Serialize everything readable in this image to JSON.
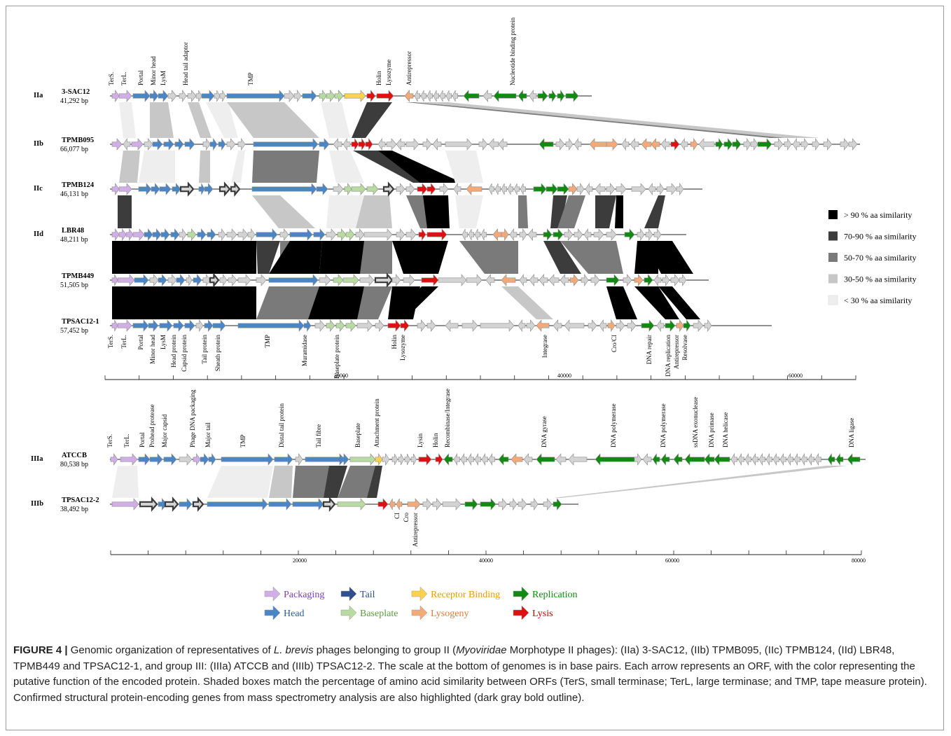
{
  "group2": {
    "genomes": [
      {
        "id": "IIa",
        "name": "3-SAC12",
        "size": "41,292 bp"
      },
      {
        "id": "IIb",
        "name": "TPMB095",
        "size": "66,077 bp"
      },
      {
        "id": "IIc",
        "name": "TPMB124",
        "size": "46,131 bp"
      },
      {
        "id": "IId",
        "name": "LBR48",
        "size": "48,211 bp"
      },
      {
        "id": "",
        "name": "TPMB449",
        "size": "51,505 bp"
      },
      {
        "id": "",
        "name": "TPSAC12-1",
        "size": "57,452 bp"
      }
    ],
    "top_labels": [
      "TerS.",
      "TerL.",
      "Portal",
      "Minor head",
      "LysM",
      "Head tail adaptor",
      "TMP",
      "Holin",
      "Lysozyme",
      "Antirepressor",
      "Nucleotide binding protein"
    ],
    "bottom_labels": [
      "TerS.",
      "TerL.",
      "Portal",
      "Minor head",
      "LysM",
      "Head protein",
      "Capsid protein",
      "Tail protein",
      "Sheath protein",
      "TMP",
      "Muramidase",
      "Baseplate protein",
      "Holin",
      "Lysozyme",
      "Integrase",
      "Cro/CI",
      "DNA repair",
      "DNA replication",
      "Antirepressor",
      "Resolvase"
    ],
    "scale_ticks": [
      "20000",
      "40000",
      "60000"
    ]
  },
  "group3": {
    "genomes": [
      {
        "id": "IIIa",
        "name": "ATCCB",
        "size": "80,538 bp"
      },
      {
        "id": "IIIb",
        "name": "TPSAC12-2",
        "size": "38,492 bp"
      }
    ],
    "top_labels": [
      "TerS.",
      "TerL.",
      "Portal",
      "Prohead protease",
      "Major capsid",
      "Phage DNA packaging",
      "Major tail",
      "TMP",
      "Distal tail protein",
      "Tail fibre",
      "Baseplate",
      "Attachment protein",
      "Lysin",
      "Holin",
      "Recombinase/Integrase",
      "DNA gyrase",
      "DNA polymerase",
      "DNA polymerase",
      "ssDNA exonuclease",
      "DNA primase",
      "DNA helicase",
      "DNA ligase"
    ],
    "bottom_labels": [
      "CI",
      "Cro",
      "Antirepressor"
    ],
    "scale_ticks": [
      "20000",
      "40000",
      "60000",
      "80000"
    ]
  },
  "similarity_legend": [
    {
      "label": "> 90 % aa similarity",
      "color": "#000000"
    },
    {
      "label": "70-90 % aa similarity",
      "color": "#3c3c3c"
    },
    {
      "label": "50-70 % aa similarity",
      "color": "#7a7a7a"
    },
    {
      "label": "30-50 % aa similarity",
      "color": "#c7c7c7"
    },
    {
      "label": "< 30 % aa similarity",
      "color": "#eeeeee"
    }
  ],
  "function_legend": [
    {
      "label": "Packaging",
      "color": "#d2aee8",
      "text_color": "#7b3fa8"
    },
    {
      "label": "Tail",
      "color": "#2f4f8f",
      "text_color": "#2f4f8f"
    },
    {
      "label": "Receptor Binding",
      "color": "#ffd24d",
      "text_color": "#e0a000"
    },
    {
      "label": "Replication",
      "color": "#118a11",
      "text_color": "#118a11"
    },
    {
      "label": "Head",
      "color": "#4a86c5",
      "text_color": "#2a5e9a"
    },
    {
      "label": "Baseplate",
      "color": "#b7dba0",
      "text_color": "#5aa03a"
    },
    {
      "label": "Lysogeny",
      "color": "#f4a978",
      "text_color": "#e07b3a"
    },
    {
      "label": "Lysis",
      "color": "#e01010",
      "text_color": "#d00000"
    }
  ],
  "caption": {
    "label": "FIGURE 4 |",
    "p1": " Genomic organization of representatives of ",
    "i1": "L. brevis",
    "p2": " phages belonging to group II (",
    "i2": "Myoviridae",
    "p3": " Morphotype II phages): (IIa) 3-SAC12, (IIb) TPMB095, (IIc) TPMB124, (IId) LBR48, TPMB449 and TPSAC12-1, and group III: (IIIa) ATCCB and (IIIb) TPSAC12-2. The scale at the bottom of genomes is in base pairs. Each arrow represents an ORF, with the color representing the putative function of the encoded protein. Shaded boxes match the percentage of amino acid similarity between ORFs (TerS, small terminase; TerL, large terminase; and TMP, tape measure protein). Confirmed structural protein-encoding genes from mass spectrometry analysis are also highlighted (dark gray bold outline)."
  }
}
